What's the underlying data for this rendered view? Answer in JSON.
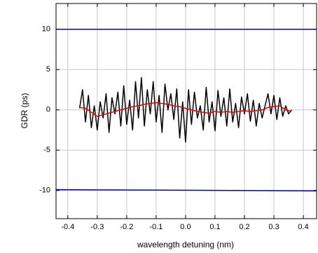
{
  "chart_data": {
    "type": "line",
    "xlabel": "wavelength detuning (nm)",
    "ylabel": "GDR (ps)",
    "xlim": [
      -0.44,
      0.445
    ],
    "ylim": [
      -13.5,
      13.2
    ],
    "xticks": [
      -0.4,
      -0.3,
      -0.2,
      -0.1,
      {
        "value": 0,
        "label": "0.0"
      },
      0.1,
      0.2,
      0.3,
      0.4
    ],
    "yticks": [
      -10,
      -5,
      0,
      5,
      10
    ],
    "grid": true,
    "series": [
      {
        "color": "#0000cc",
        "x": [
          -0.44,
          0.445
        ],
        "values": [
          10,
          10
        ]
      },
      {
        "color": "#0000cc",
        "x": [
          -0.44,
          0.445
        ],
        "values": [
          -9.9,
          -10.05
        ]
      },
      {
        "color": "#000000",
        "x": [
          -0.36,
          -0.35,
          -0.34,
          -0.33,
          -0.32,
          -0.31,
          -0.3,
          -0.29,
          -0.28,
          -0.27,
          -0.26,
          -0.25,
          -0.24,
          -0.23,
          -0.22,
          -0.21,
          -0.2,
          -0.19,
          -0.18,
          -0.17,
          -0.16,
          -0.15,
          -0.14,
          -0.13,
          -0.12,
          -0.11,
          -0.1,
          -0.09,
          -0.08,
          -0.07,
          -0.06,
          -0.05,
          -0.04,
          -0.03,
          -0.02,
          -0.01,
          0.0,
          0.01,
          0.02,
          0.03,
          0.04,
          0.05,
          0.06,
          0.07,
          0.08,
          0.09,
          0.1,
          0.11,
          0.12,
          0.13,
          0.14,
          0.15,
          0.16,
          0.17,
          0.18,
          0.19,
          0.2,
          0.21,
          0.22,
          0.23,
          0.24,
          0.25,
          0.26,
          0.27,
          0.28,
          0.29,
          0.3,
          0.31,
          0.32,
          0.33,
          0.34,
          0.35,
          0.36
        ],
        "values": [
          0.2,
          2.5,
          -1.5,
          1.8,
          -2.2,
          0.5,
          -2.5,
          1.0,
          -1.0,
          2.0,
          -2.8,
          1.5,
          -0.5,
          2.2,
          -2.0,
          3.0,
          -1.8,
          1.2,
          -2.5,
          3.5,
          -1.0,
          4.0,
          -2.0,
          2.5,
          -0.5,
          3.5,
          -1.5,
          1.8,
          -2.8,
          3.2,
          0.0,
          2.0,
          -1.2,
          2.6,
          -3.5,
          1.0,
          -4.0,
          2.5,
          -1.8,
          2.2,
          -1.0,
          0.5,
          -2.5,
          2.8,
          -1.5,
          1.0,
          -2.6,
          2.4,
          -0.8,
          1.5,
          -2.0,
          2.6,
          -1.5,
          0.8,
          -2.2,
          1.6,
          -0.5,
          2.0,
          -1.4,
          1.2,
          -2.0,
          0.8,
          -1.0,
          0.5,
          2.0,
          -0.5,
          1.8,
          -1.2,
          1.5,
          -0.8,
          0.5,
          -0.5,
          0.0
        ]
      },
      {
        "color": "#ee0000",
        "x": [
          -0.36,
          -0.34,
          -0.32,
          -0.3,
          -0.28,
          -0.26,
          -0.24,
          -0.22,
          -0.2,
          -0.18,
          -0.16,
          -0.14,
          -0.12,
          -0.1,
          -0.08,
          -0.06,
          -0.04,
          -0.02,
          0.0,
          0.02,
          0.04,
          0.06,
          0.08,
          0.1,
          0.12,
          0.14,
          0.16,
          0.18,
          0.2,
          0.22,
          0.24,
          0.26,
          0.28,
          0.3,
          0.32,
          0.34,
          0.36
        ],
        "values": [
          0.3,
          0.2,
          -0.3,
          -0.8,
          -0.6,
          -0.4,
          -0.2,
          0.0,
          0.2,
          0.4,
          0.5,
          0.7,
          0.8,
          0.9,
          0.8,
          0.7,
          0.5,
          0.4,
          0.2,
          0.0,
          -0.2,
          -0.3,
          -0.4,
          -0.2,
          -0.3,
          -0.2,
          -0.3,
          -0.2,
          -0.1,
          -0.2,
          -0.1,
          0.0,
          0.3,
          0.4,
          0.5,
          0.0,
          -0.2
        ]
      }
    ]
  }
}
